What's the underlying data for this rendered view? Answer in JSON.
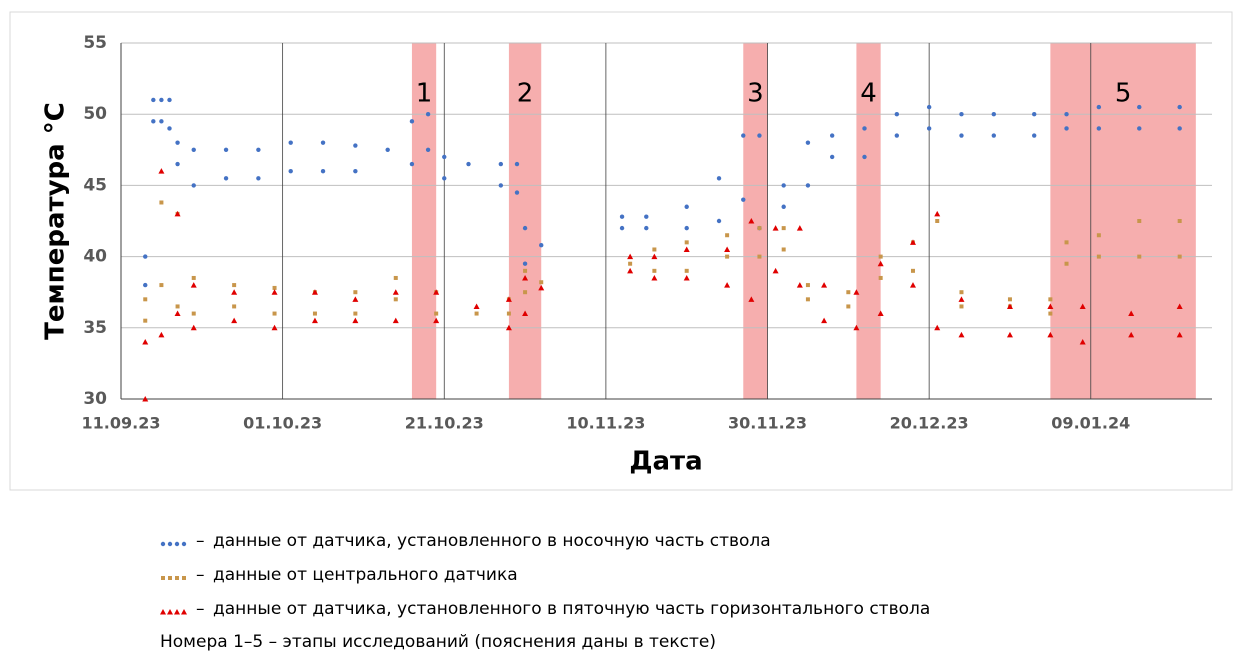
{
  "chart_data": {
    "type": "scatter",
    "y_label": "Температура °С",
    "x_label": "Дата",
    "xlim": [
      "11.09.23",
      "24.01.24"
    ],
    "xticks": [
      "11.09.23",
      "01.10.23",
      "21.10.23",
      "10.11.23",
      "30.11.23",
      "20.12.23",
      "09.01.24"
    ],
    "ylim": [
      30,
      55
    ],
    "yticks": [
      30,
      35,
      40,
      45,
      50,
      55
    ],
    "grid": true,
    "stages": [
      {
        "label": "1",
        "start": "17.10.23",
        "end": "20.10.23"
      },
      {
        "label": "2",
        "start": "29.10.23",
        "end": "02.11.23"
      },
      {
        "label": "3",
        "start": "27.11.23",
        "end": "30.11.23"
      },
      {
        "label": "4",
        "start": "11.12.23",
        "end": "14.12.23"
      },
      {
        "label": "5",
        "start": "04.01.24",
        "end": "22.01.24"
      }
    ],
    "stage_color": "#f4a0a0",
    "series": [
      {
        "name": "данные от датчика, установленного в носочную часть ствола",
        "color": "#4472c4",
        "marker": "circle",
        "x": [
          "14.09.23",
          "14.09.23",
          "15.09.23",
          "15.09.23",
          "16.09.23",
          "16.09.23",
          "17.09.23",
          "17.09.23",
          "18.09.23",
          "18.09.23",
          "20.09.23",
          "20.09.23",
          "24.09.23",
          "24.09.23",
          "28.09.23",
          "28.09.23",
          "02.10.23",
          "02.10.23",
          "06.10.23",
          "06.10.23",
          "10.10.23",
          "10.10.23",
          "14.10.23",
          "17.10.23",
          "17.10.23",
          "19.10.23",
          "19.10.23",
          "21.10.23",
          "21.10.23",
          "24.10.23",
          "28.10.23",
          "28.10.23",
          "30.10.23",
          "30.10.23",
          "31.10.23",
          "31.10.23",
          "02.11.23",
          "12.11.23",
          "12.11.23",
          "15.11.23",
          "15.11.23",
          "20.11.23",
          "20.11.23",
          "24.11.23",
          "24.11.23",
          "27.11.23",
          "27.11.23",
          "29.11.23",
          "29.11.23",
          "02.12.23",
          "02.12.23",
          "05.12.23",
          "05.12.23",
          "08.12.23",
          "08.12.23",
          "12.12.23",
          "12.12.23",
          "16.12.23",
          "16.12.23",
          "20.12.23",
          "20.12.23",
          "24.12.23",
          "24.12.23",
          "28.12.23",
          "28.12.23",
          "02.01.24",
          "02.01.24",
          "06.01.24",
          "06.01.24",
          "10.01.24",
          "10.01.24",
          "15.01.24",
          "15.01.24",
          "20.01.24",
          "20.01.24"
        ],
        "values": [
          38,
          40,
          49.5,
          51,
          49.5,
          51,
          49,
          51,
          46.5,
          48,
          45,
          47.5,
          45.5,
          47.5,
          45.5,
          47.5,
          46,
          48,
          46,
          48,
          46,
          47.8,
          47.5,
          46.5,
          49.5,
          47.5,
          50,
          45.5,
          47,
          46.5,
          45,
          46.5,
          44.5,
          46.5,
          39.5,
          42,
          40.8,
          42,
          42.8,
          42,
          42.8,
          42,
          43.5,
          42.5,
          45.5,
          44,
          48.5,
          42,
          48.5,
          43.5,
          45,
          45,
          48,
          47,
          48.5,
          47,
          49,
          48.5,
          50,
          49,
          50.5,
          48.5,
          50,
          48.5,
          50,
          48.5,
          50,
          49,
          50,
          49,
          50.5,
          49,
          50.5,
          49,
          50.5
        ]
      },
      {
        "name": "данные от центрального датчика",
        "color": "#c8964b",
        "marker": "square",
        "x": [
          "14.09.23",
          "14.09.23",
          "16.09.23",
          "16.09.23",
          "18.09.23",
          "18.09.23",
          "20.09.23",
          "20.09.23",
          "25.09.23",
          "25.09.23",
          "30.09.23",
          "30.09.23",
          "05.10.23",
          "05.10.23",
          "10.10.23",
          "10.10.23",
          "15.10.23",
          "15.10.23",
          "20.10.23",
          "20.10.23",
          "25.10.23",
          "29.10.23",
          "29.10.23",
          "31.10.23",
          "31.10.23",
          "02.11.23",
          "13.11.23",
          "16.11.23",
          "16.11.23",
          "20.11.23",
          "20.11.23",
          "25.11.23",
          "25.11.23",
          "29.11.23",
          "29.11.23",
          "02.12.23",
          "02.12.23",
          "05.12.23",
          "05.12.23",
          "10.12.23",
          "10.12.23",
          "14.12.23",
          "14.12.23",
          "18.12.23",
          "18.12.23",
          "21.12.23",
          "24.12.23",
          "24.12.23",
          "30.12.23",
          "30.12.23",
          "04.01.24",
          "04.01.24",
          "06.01.24",
          "06.01.24",
          "10.01.24",
          "10.01.24",
          "15.01.24",
          "15.01.24",
          "20.01.24",
          "20.01.24"
        ],
        "values": [
          35.5,
          37,
          38,
          43.8,
          36.5,
          43,
          36,
          38.5,
          36.5,
          38,
          36,
          37.8,
          36,
          37.5,
          36,
          37.5,
          37,
          38.5,
          36,
          37.5,
          36,
          36,
          37,
          37.5,
          39,
          38.2,
          39.5,
          39,
          40.5,
          39,
          41,
          40,
          41.5,
          40,
          42,
          40.5,
          42,
          37,
          38,
          36.5,
          37.5,
          38.5,
          40,
          39,
          41,
          42.5,
          36.5,
          37.5,
          36.5,
          37,
          36,
          37,
          39.5,
          41,
          40,
          41.5,
          40,
          42.5,
          40,
          42.5
        ]
      },
      {
        "name": "данные от датчика, установленного в пяточную часть горизонтального ствола",
        "color": "#e00000",
        "marker": "triangle",
        "x": [
          "14.09.23",
          "14.09.23",
          "16.09.23",
          "16.09.23",
          "18.09.23",
          "18.09.23",
          "20.09.23",
          "20.09.23",
          "25.09.23",
          "25.09.23",
          "30.09.23",
          "30.09.23",
          "05.10.23",
          "05.10.23",
          "10.10.23",
          "10.10.23",
          "15.10.23",
          "15.10.23",
          "20.10.23",
          "20.10.23",
          "25.10.23",
          "29.10.23",
          "29.10.23",
          "31.10.23",
          "31.10.23",
          "02.11.23",
          "13.11.23",
          "13.11.23",
          "16.11.23",
          "16.11.23",
          "20.11.23",
          "20.11.23",
          "25.11.23",
          "25.11.23",
          "28.11.23",
          "28.11.23",
          "01.12.23",
          "01.12.23",
          "04.12.23",
          "04.12.23",
          "07.12.23",
          "07.12.23",
          "11.12.23",
          "11.12.23",
          "14.12.23",
          "14.12.23",
          "18.12.23",
          "18.12.23",
          "21.12.23",
          "21.12.23",
          "24.12.23",
          "24.12.23",
          "30.12.23",
          "30.12.23",
          "04.01.24",
          "04.01.24",
          "08.01.24",
          "08.01.24",
          "14.01.24",
          "14.01.24",
          "20.01.24",
          "20.01.24"
        ],
        "values": [
          30,
          34,
          34.5,
          46,
          36,
          43,
          35,
          38,
          35.5,
          37.5,
          35,
          37.5,
          35.5,
          37.5,
          35.5,
          37,
          35.5,
          37.5,
          35.5,
          37.5,
          36.5,
          35,
          37,
          36,
          38.5,
          37.8,
          39,
          40,
          38.5,
          40,
          38.5,
          40.5,
          38,
          40.5,
          37,
          42.5,
          39,
          42,
          38,
          42,
          35.5,
          38,
          35,
          37.5,
          36,
          39.5,
          38,
          41,
          35,
          43,
          34.5,
          37,
          34.5,
          36.5,
          34.5,
          36.5,
          34,
          36.5,
          34.5,
          36,
          34.5,
          36.5
        ]
      }
    ],
    "legend_separator": "–",
    "note": "Номера 1–5 – этапы исследований (пояснения даны в тексте)"
  }
}
